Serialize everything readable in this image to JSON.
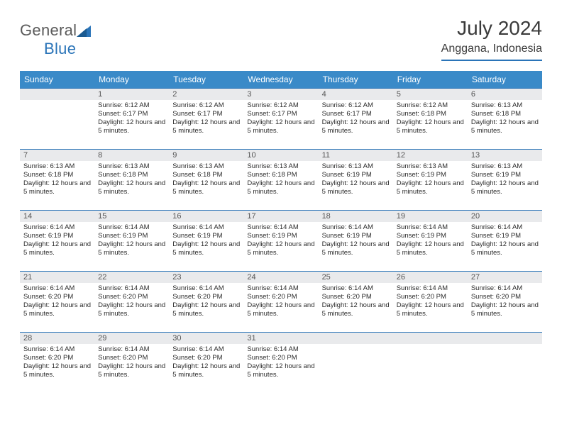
{
  "logo": {
    "textGray": "General",
    "textBlue": "Blue"
  },
  "title": "July 2024",
  "location": "Anggana, Indonesia",
  "colors": {
    "header_bg": "#3a8ac8",
    "header_text": "#ffffff",
    "border": "#2a74b8",
    "daynum_bg": "#e9eaec",
    "text": "#2b2b2b"
  },
  "dayHeaders": [
    "Sunday",
    "Monday",
    "Tuesday",
    "Wednesday",
    "Thursday",
    "Friday",
    "Saturday"
  ],
  "weeks": [
    [
      {
        "n": "",
        "sr": "",
        "ss": "",
        "dl": ""
      },
      {
        "n": "1",
        "sr": "6:12 AM",
        "ss": "6:17 PM",
        "dl": "12 hours and 5 minutes."
      },
      {
        "n": "2",
        "sr": "6:12 AM",
        "ss": "6:17 PM",
        "dl": "12 hours and 5 minutes."
      },
      {
        "n": "3",
        "sr": "6:12 AM",
        "ss": "6:17 PM",
        "dl": "12 hours and 5 minutes."
      },
      {
        "n": "4",
        "sr": "6:12 AM",
        "ss": "6:17 PM",
        "dl": "12 hours and 5 minutes."
      },
      {
        "n": "5",
        "sr": "6:12 AM",
        "ss": "6:18 PM",
        "dl": "12 hours and 5 minutes."
      },
      {
        "n": "6",
        "sr": "6:13 AM",
        "ss": "6:18 PM",
        "dl": "12 hours and 5 minutes."
      }
    ],
    [
      {
        "n": "7",
        "sr": "6:13 AM",
        "ss": "6:18 PM",
        "dl": "12 hours and 5 minutes."
      },
      {
        "n": "8",
        "sr": "6:13 AM",
        "ss": "6:18 PM",
        "dl": "12 hours and 5 minutes."
      },
      {
        "n": "9",
        "sr": "6:13 AM",
        "ss": "6:18 PM",
        "dl": "12 hours and 5 minutes."
      },
      {
        "n": "10",
        "sr": "6:13 AM",
        "ss": "6:18 PM",
        "dl": "12 hours and 5 minutes."
      },
      {
        "n": "11",
        "sr": "6:13 AM",
        "ss": "6:19 PM",
        "dl": "12 hours and 5 minutes."
      },
      {
        "n": "12",
        "sr": "6:13 AM",
        "ss": "6:19 PM",
        "dl": "12 hours and 5 minutes."
      },
      {
        "n": "13",
        "sr": "6:13 AM",
        "ss": "6:19 PM",
        "dl": "12 hours and 5 minutes."
      }
    ],
    [
      {
        "n": "14",
        "sr": "6:14 AM",
        "ss": "6:19 PM",
        "dl": "12 hours and 5 minutes."
      },
      {
        "n": "15",
        "sr": "6:14 AM",
        "ss": "6:19 PM",
        "dl": "12 hours and 5 minutes."
      },
      {
        "n": "16",
        "sr": "6:14 AM",
        "ss": "6:19 PM",
        "dl": "12 hours and 5 minutes."
      },
      {
        "n": "17",
        "sr": "6:14 AM",
        "ss": "6:19 PM",
        "dl": "12 hours and 5 minutes."
      },
      {
        "n": "18",
        "sr": "6:14 AM",
        "ss": "6:19 PM",
        "dl": "12 hours and 5 minutes."
      },
      {
        "n": "19",
        "sr": "6:14 AM",
        "ss": "6:19 PM",
        "dl": "12 hours and 5 minutes."
      },
      {
        "n": "20",
        "sr": "6:14 AM",
        "ss": "6:19 PM",
        "dl": "12 hours and 5 minutes."
      }
    ],
    [
      {
        "n": "21",
        "sr": "6:14 AM",
        "ss": "6:20 PM",
        "dl": "12 hours and 5 minutes."
      },
      {
        "n": "22",
        "sr": "6:14 AM",
        "ss": "6:20 PM",
        "dl": "12 hours and 5 minutes."
      },
      {
        "n": "23",
        "sr": "6:14 AM",
        "ss": "6:20 PM",
        "dl": "12 hours and 5 minutes."
      },
      {
        "n": "24",
        "sr": "6:14 AM",
        "ss": "6:20 PM",
        "dl": "12 hours and 5 minutes."
      },
      {
        "n": "25",
        "sr": "6:14 AM",
        "ss": "6:20 PM",
        "dl": "12 hours and 5 minutes."
      },
      {
        "n": "26",
        "sr": "6:14 AM",
        "ss": "6:20 PM",
        "dl": "12 hours and 5 minutes."
      },
      {
        "n": "27",
        "sr": "6:14 AM",
        "ss": "6:20 PM",
        "dl": "12 hours and 5 minutes."
      }
    ],
    [
      {
        "n": "28",
        "sr": "6:14 AM",
        "ss": "6:20 PM",
        "dl": "12 hours and 5 minutes."
      },
      {
        "n": "29",
        "sr": "6:14 AM",
        "ss": "6:20 PM",
        "dl": "12 hours and 5 minutes."
      },
      {
        "n": "30",
        "sr": "6:14 AM",
        "ss": "6:20 PM",
        "dl": "12 hours and 5 minutes."
      },
      {
        "n": "31",
        "sr": "6:14 AM",
        "ss": "6:20 PM",
        "dl": "12 hours and 5 minutes."
      },
      {
        "n": "",
        "sr": "",
        "ss": "",
        "dl": ""
      },
      {
        "n": "",
        "sr": "",
        "ss": "",
        "dl": ""
      },
      {
        "n": "",
        "sr": "",
        "ss": "",
        "dl": ""
      }
    ]
  ],
  "labels": {
    "sunrise": "Sunrise:",
    "sunset": "Sunset:",
    "daylight": "Daylight:"
  }
}
